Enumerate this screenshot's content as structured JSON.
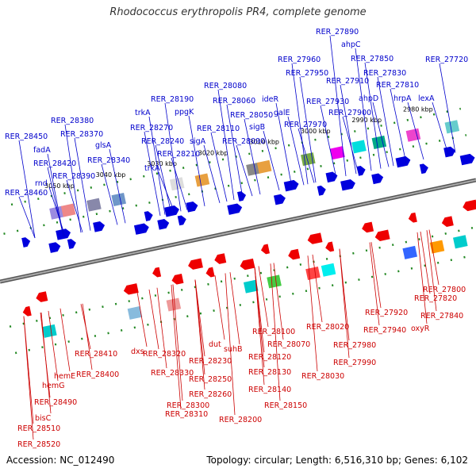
{
  "title": "Rhodococcus erythropolis PR4, complete genome",
  "footer": {
    "accession": "Accession: NC_012490",
    "summary": "Topology: circular; Length: 6,516,310 bp; Genes: 6,102"
  },
  "colors": {
    "top_label": "#0000cc",
    "bottom_label": "#cc0000",
    "forward_gene": "#0000dd",
    "reverse_gene": "#ee0000",
    "backbone": "#888888",
    "tick": "#228822"
  },
  "ticks": [
    "2980 kbp",
    "2990 kbp",
    "3000 kbp",
    "3010 kbp",
    "3020 kbp",
    "3030 kbp",
    "3040 kbp",
    "3050 kbp"
  ],
  "top_labels": [
    "RER_27890",
    "ahpC",
    "RER_27850",
    "RER_27720",
    "RER_27960",
    "RER_27830",
    "RER_27950",
    "RER_27910",
    "RER_27810",
    "RER_28080",
    "ahpD",
    "hrpA",
    "lexA",
    "RER_28190",
    "RER_28060",
    "ideR",
    "RER_27930",
    "trkA",
    "ppgK",
    "RER_28050",
    "galE",
    "RER_27900",
    "RER_28380",
    "RER_28270",
    "RER_28110",
    "sigB",
    "RER_27970",
    "RER_28450",
    "RER_28370",
    "RER_28240",
    "sigA",
    "RER_28090",
    "glsA",
    "fadA",
    "RER_28210",
    "RER_28420",
    "RER_28340",
    "trkA",
    "rnd",
    "RER_28390",
    "RER_28460"
  ],
  "bottom_labels": [
    "RER_27800",
    "RER_27820",
    "RER_27840",
    "oxyR",
    "RER_27920",
    "RER_27940",
    "RER_28020",
    "RER_27980",
    "RER_28100",
    "RER_28070",
    "RER_27990",
    "dut",
    "suhB",
    "RER_28120",
    "RER_28410",
    "dxs",
    "RER_28320",
    "RER_28230",
    "RER_28130",
    "RER_28030",
    "RER_28400",
    "hemE",
    "RER_28330",
    "RER_28250",
    "RER_28140",
    "hemG",
    "RER_28260",
    "RER_28150",
    "RER_28490",
    "RER_28300",
    "RER_28310",
    "RER_28200",
    "bisC",
    "RER_28510",
    "RER_28520"
  ]
}
